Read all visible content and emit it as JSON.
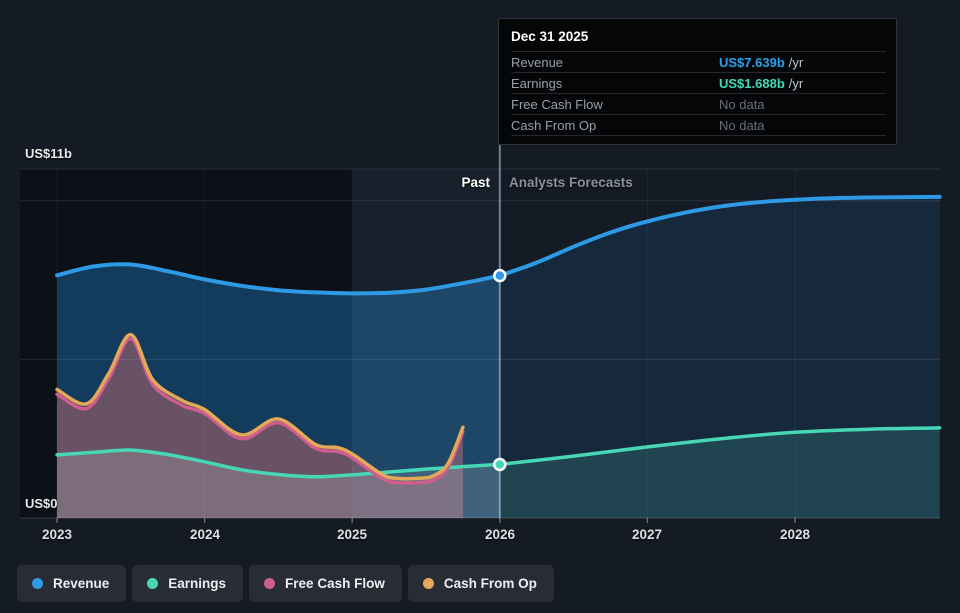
{
  "tooltip": {
    "title": "Dec 31 2025",
    "rows": [
      {
        "label": "Revenue",
        "value": "US$7.639b",
        "suffix": "/yr",
        "value_color": "#29a3ea"
      },
      {
        "label": "Earnings",
        "value": "US$1.688b",
        "suffix": "/yr",
        "value_color": "#43d9b6"
      },
      {
        "label": "Free Cash Flow",
        "value": "No data",
        "suffix": "",
        "value_color": "#6b7076"
      },
      {
        "label": "Cash From Op",
        "value": "No data",
        "suffix": "",
        "value_color": "#6b7076"
      }
    ]
  },
  "axis": {
    "y_top_label": "US$11b",
    "y_bottom_label": "US$0",
    "x_labels": [
      "2023",
      "2024",
      "2025",
      "2026",
      "2027",
      "2028"
    ]
  },
  "zones": {
    "past_label": "Past",
    "forecast_label": "Analysts Forecasts"
  },
  "legend": [
    {
      "label": "Revenue",
      "color": "#2e99e5"
    },
    {
      "label": "Earnings",
      "color": "#47d6b6"
    },
    {
      "label": "Free Cash Flow",
      "color": "#cf5d8e"
    },
    {
      "label": "Cash From Op",
      "color": "#e3a958"
    }
  ],
  "chart_data": {
    "type": "area",
    "unit": "US$ billions per year",
    "x_axis": {
      "ticks": [
        2023,
        2024,
        2025,
        2026,
        2027,
        2028
      ],
      "divider": 2026
    },
    "y_axis": {
      "min": 0,
      "max": 11,
      "gridline_values": [
        0,
        5,
        10,
        11
      ],
      "grid": true
    },
    "legend_position": "bottom-left",
    "series": [
      {
        "name": "Revenue",
        "color": "#2e99e5",
        "width": 4,
        "past_fill": "rgba(32,120,185,0.42)",
        "forecast_fill": "rgba(32,120,185,0.16)",
        "past": {
          "x": [
            2023,
            2023.25,
            2023.5,
            2023.75,
            2024,
            2024.25,
            2024.5,
            2024.75,
            2025,
            2025.25,
            2025.5,
            2025.75,
            2026
          ],
          "y": [
            7.65,
            7.93,
            7.99,
            7.78,
            7.52,
            7.32,
            7.18,
            7.11,
            7.08,
            7.1,
            7.2,
            7.4,
            7.639
          ]
        },
        "forecast": {
          "x": [
            2026,
            2026.25,
            2026.5,
            2026.75,
            2027,
            2027.25,
            2027.5,
            2027.75,
            2028,
            2028.33,
            2028.66,
            2028.98
          ],
          "y": [
            7.639,
            8.05,
            8.55,
            9.0,
            9.35,
            9.62,
            9.82,
            9.95,
            10.03,
            10.09,
            10.11,
            10.12
          ]
        }
      },
      {
        "name": "Cash From Op",
        "color": "#e3a958",
        "width": 3.5,
        "past_fill": "rgba(230,165,80,0.20)",
        "past": {
          "x": [
            2023,
            2023.2,
            2023.35,
            2023.5,
            2023.65,
            2023.85,
            2024,
            2024.25,
            2024.5,
            2024.75,
            2024.9,
            2025,
            2025.2,
            2025.3,
            2025.45,
            2025.55,
            2025.65,
            2025.75
          ],
          "y": [
            4.05,
            3.6,
            4.55,
            5.78,
            4.35,
            3.7,
            3.42,
            2.62,
            3.12,
            2.32,
            2.22,
            2.02,
            1.38,
            1.25,
            1.25,
            1.33,
            1.72,
            2.86
          ]
        }
      },
      {
        "name": "Free Cash Flow",
        "color": "#cf5d8e",
        "width": 3.5,
        "past_fill": "rgba(210,90,135,0.30)",
        "past": {
          "x": [
            2023,
            2023.2,
            2023.35,
            2023.5,
            2023.65,
            2023.85,
            2024,
            2024.25,
            2024.5,
            2024.75,
            2024.9,
            2025,
            2025.2,
            2025.3,
            2025.45,
            2025.55,
            2025.65,
            2025.75
          ],
          "y": [
            3.9,
            3.45,
            4.4,
            5.65,
            4.2,
            3.55,
            3.3,
            2.5,
            3.0,
            2.2,
            2.1,
            1.9,
            1.25,
            1.12,
            1.12,
            1.2,
            1.6,
            2.72
          ]
        }
      },
      {
        "name": "Earnings",
        "color": "#47d6b6",
        "width": 3.5,
        "past_fill": "rgba(195,205,200,0.22)",
        "forecast_fill": "rgba(85,215,190,0.16)",
        "past": {
          "x": [
            2023,
            2023.25,
            2023.5,
            2023.75,
            2024,
            2024.25,
            2024.5,
            2024.75,
            2025,
            2025.25,
            2025.5,
            2025.75,
            2026
          ],
          "y": [
            1.99,
            2.07,
            2.14,
            2.0,
            1.77,
            1.52,
            1.37,
            1.3,
            1.36,
            1.45,
            1.54,
            1.62,
            1.688
          ]
        },
        "forecast": {
          "x": [
            2026,
            2026.5,
            2027,
            2027.5,
            2028,
            2028.5,
            2028.98
          ],
          "y": [
            1.688,
            1.95,
            2.24,
            2.5,
            2.7,
            2.8,
            2.84
          ]
        }
      }
    ],
    "markers": [
      {
        "name": "revenue-marker",
        "x": 2026,
        "y": 7.639,
        "color": "#2e99e5"
      },
      {
        "name": "earnings-marker",
        "x": 2026,
        "y": 1.688,
        "color": "#47d6b6"
      }
    ]
  }
}
